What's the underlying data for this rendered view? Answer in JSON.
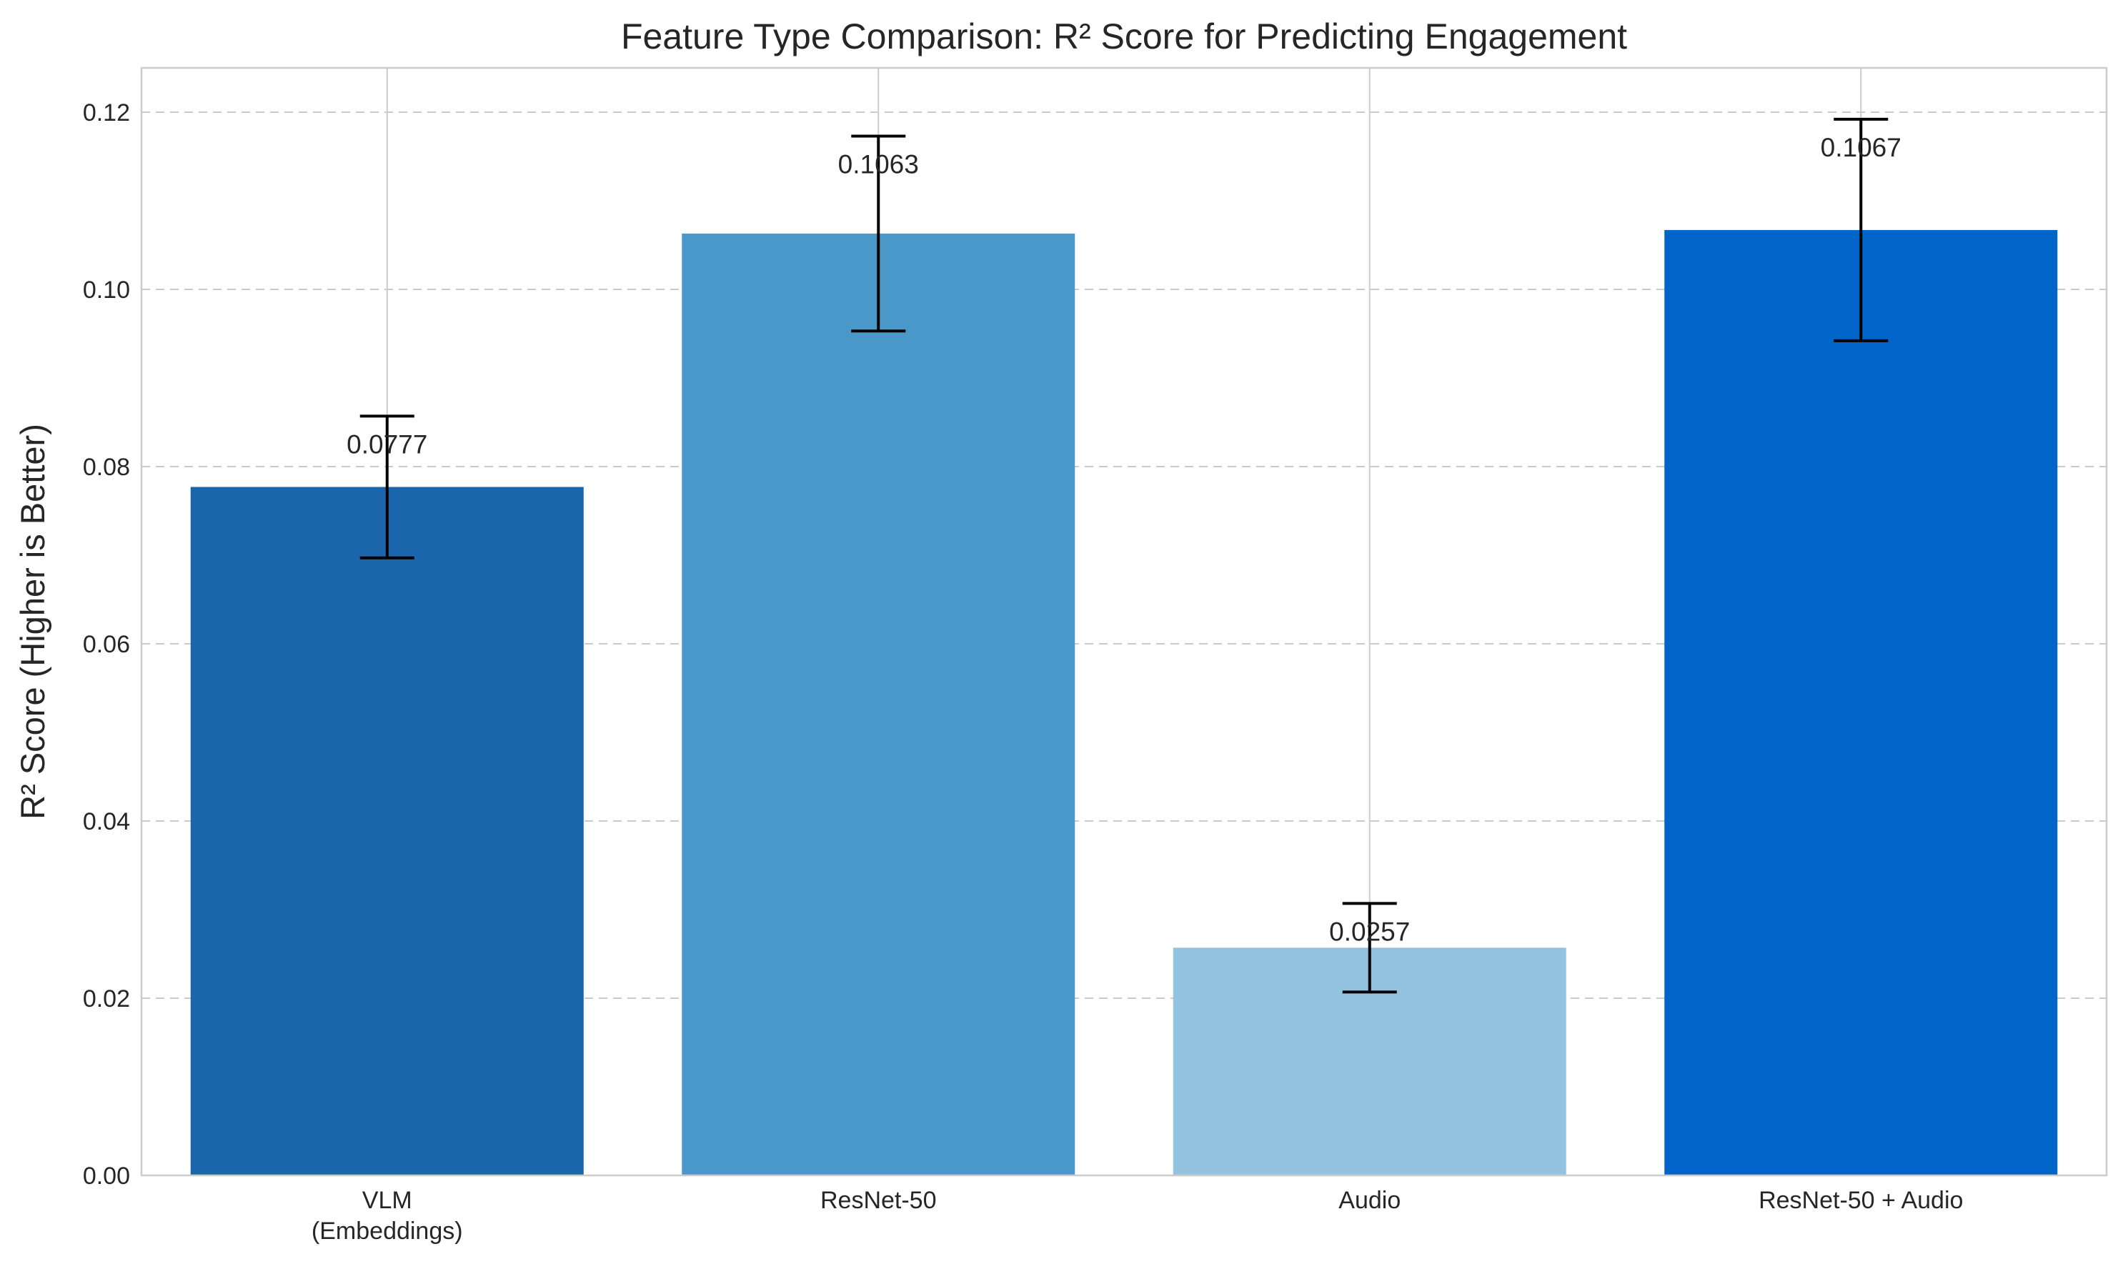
{
  "chart_data": {
    "type": "bar",
    "title": "Feature Type Comparison: R² Score for Predicting Engagement",
    "xlabel": "",
    "ylabel": "R² Score (Higher is Better)",
    "ylim": [
      0,
      0.125
    ],
    "yticks": [
      0.0,
      0.02,
      0.04,
      0.06,
      0.08,
      0.1,
      0.12
    ],
    "ytick_labels": [
      "0.00",
      "0.02",
      "0.04",
      "0.06",
      "0.08",
      "0.10",
      "0.12"
    ],
    "grid": true,
    "categories": [
      [
        "VLM",
        "(Embeddings)"
      ],
      [
        "ResNet-50"
      ],
      [
        "Audio"
      ],
      [
        "ResNet-50 + Audio"
      ]
    ],
    "values": [
      0.0777,
      0.1063,
      0.0257,
      0.1067
    ],
    "value_labels": [
      "0.0777",
      "0.1063",
      "0.0257",
      "0.1067"
    ],
    "errors": [
      0.008,
      0.011,
      0.005,
      0.0125
    ],
    "colors": [
      "#1a65ab",
      "#4a98c9",
      "#94c3e0",
      "#0064c8"
    ]
  }
}
